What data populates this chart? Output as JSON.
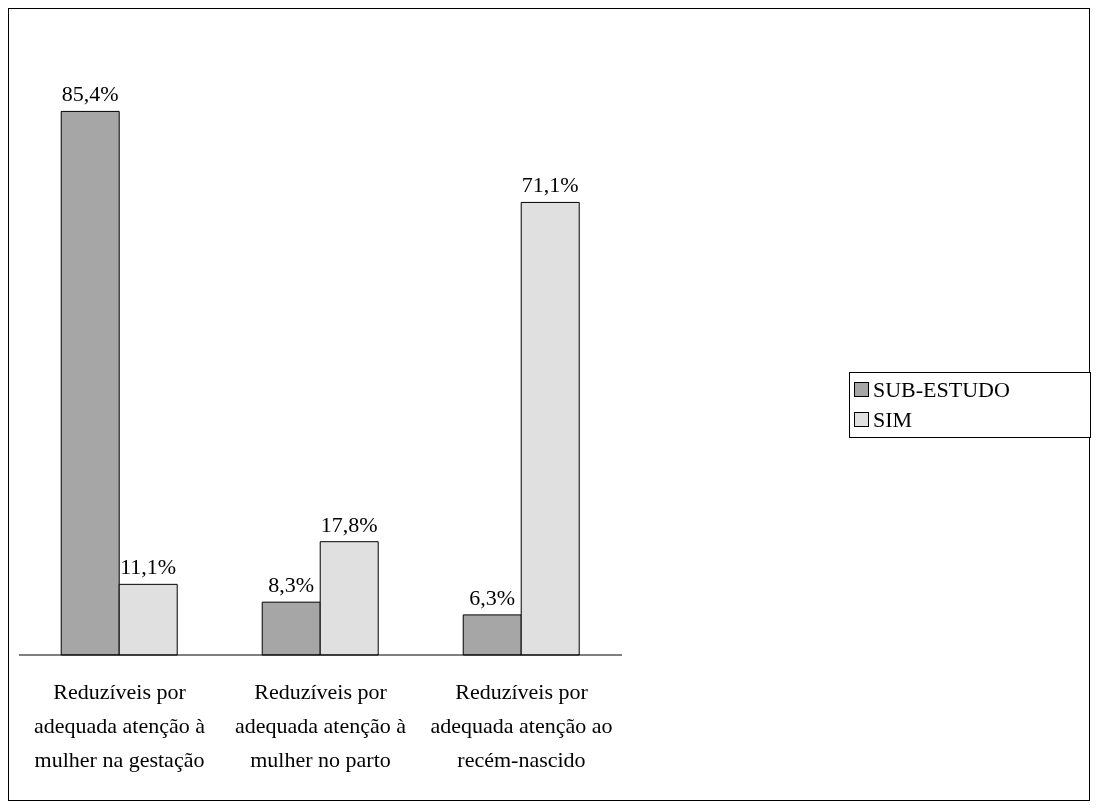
{
  "chart_data": {
    "type": "bar",
    "categories": [
      "Reduzíveis por adequada atenção à mulher na gestação",
      "Reduzíveis por adequada atenção à mulher no parto",
      "Reduzíveis por adequada atenção ao recém-nascido"
    ],
    "series": [
      {
        "name": "SUB-ESTUDO",
        "color": "#a6a6a6",
        "values": [
          85.4,
          8.3,
          6.3
        ],
        "value_labels": [
          "85,4%",
          "8,3%",
          "6,3%"
        ]
      },
      {
        "name": "SIM",
        "color": "#e0e0e0",
        "values": [
          11.1,
          17.8,
          71.1
        ],
        "value_labels": [
          "11,1%",
          "17,8%",
          "71,1%"
        ]
      }
    ],
    "legend": "right"
  }
}
